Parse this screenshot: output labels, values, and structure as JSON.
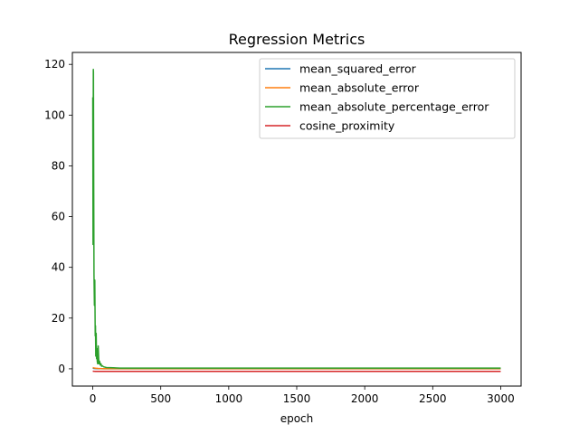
{
  "chart_data": {
    "type": "line",
    "title": "Regression Metrics",
    "xlabel": "epoch",
    "ylabel": "",
    "xlim": [
      -150,
      3150
    ],
    "ylim": [
      -6.8,
      124.7
    ],
    "xticks": [
      0,
      500,
      1000,
      1500,
      2000,
      2500,
      3000
    ],
    "yticks": [
      0,
      20,
      40,
      60,
      80,
      100,
      120
    ],
    "grid": false,
    "legend_position": "upper right",
    "series": [
      {
        "name": "mean_squared_error",
        "color": "#1f77b4",
        "x": [
          0,
          3,
          6,
          10,
          20,
          40,
          60,
          80,
          100,
          200,
          500,
          1000,
          2000,
          3000
        ],
        "y": [
          0.3,
          0.25,
          0.2,
          0.15,
          0.1,
          0.06,
          0.04,
          0.03,
          0.02,
          0.01,
          0.01,
          0.01,
          0.01,
          0.01
        ]
      },
      {
        "name": "mean_absolute_error",
        "color": "#ff7f0e",
        "x": [
          0,
          3,
          6,
          10,
          20,
          40,
          60,
          80,
          100,
          200,
          500,
          1000,
          2000,
          3000
        ],
        "y": [
          0.5,
          0.45,
          0.4,
          0.35,
          0.25,
          0.15,
          0.1,
          0.08,
          0.06,
          0.05,
          0.05,
          0.05,
          0.05,
          0.05
        ]
      },
      {
        "name": "mean_absolute_percentage_error",
        "color": "#2ca02c",
        "x": [
          0,
          2,
          4,
          5,
          7,
          9,
          12,
          15,
          18,
          20,
          22,
          25,
          28,
          30,
          33,
          36,
          38,
          40,
          45,
          50,
          55,
          60,
          65,
          70,
          80,
          100,
          150,
          200,
          500,
          1000,
          1500,
          2000,
          2500,
          3000
        ],
        "y": [
          107,
          49,
          118,
          117,
          72,
          37,
          25,
          35,
          13,
          17,
          5,
          14,
          4,
          8,
          3,
          2,
          6,
          9,
          2,
          3,
          1.5,
          2,
          1,
          1.2,
          0.8,
          0.5,
          0.4,
          0.3,
          0.3,
          0.3,
          0.3,
          0.3,
          0.3,
          0.3
        ]
      },
      {
        "name": "cosine_proximity",
        "color": "#d62728",
        "x": [
          0,
          3,
          6,
          10,
          20,
          50,
          100,
          500,
          1000,
          2000,
          3000
        ],
        "y": [
          -0.9,
          -0.95,
          -0.97,
          -0.98,
          -0.99,
          -1.0,
          -1.0,
          -1.0,
          -1.0,
          -1.0,
          -1.0
        ]
      }
    ]
  }
}
